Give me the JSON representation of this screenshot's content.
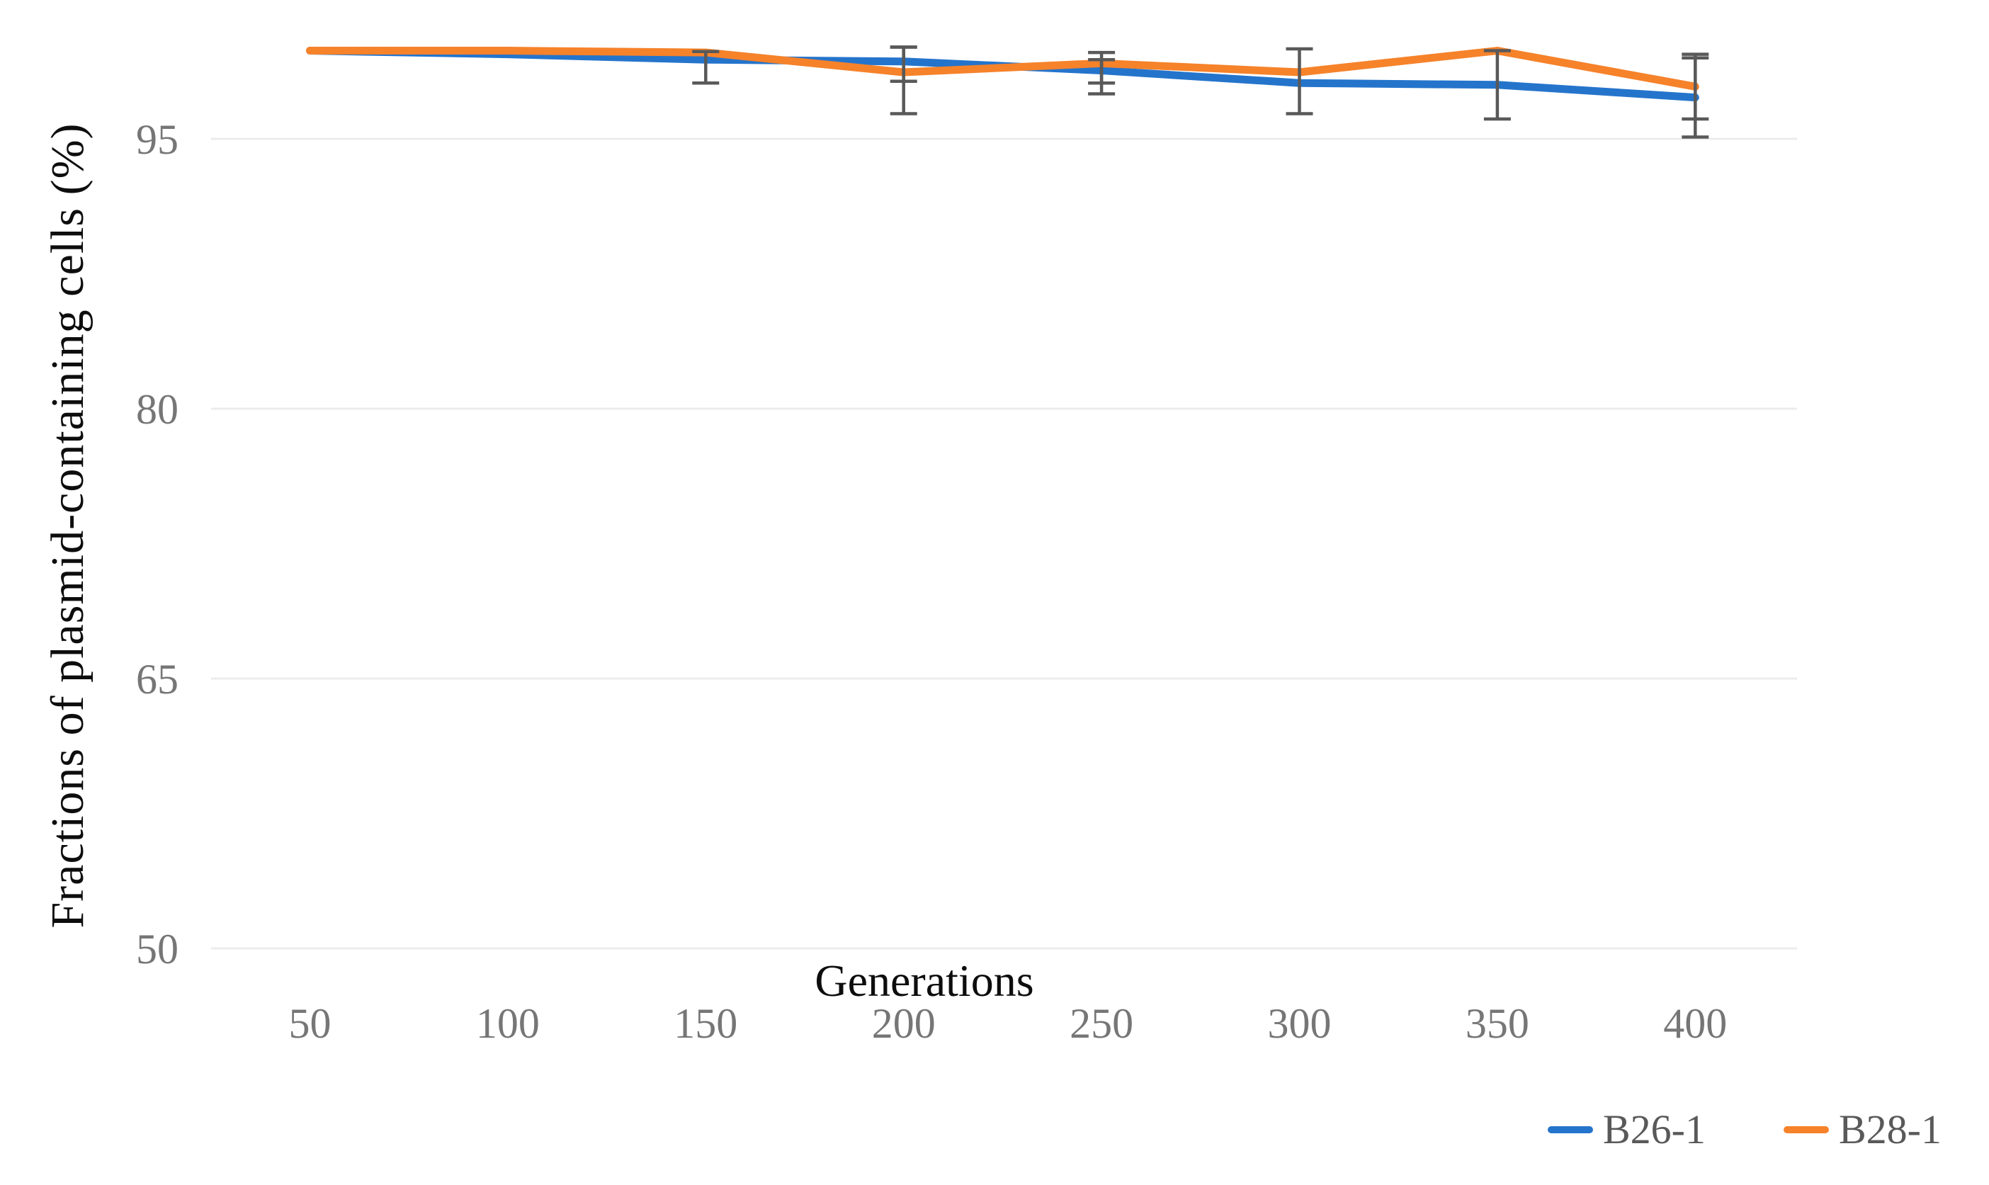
{
  "figure": {
    "background": "#ffffff"
  },
  "chart_data": {
    "type": "line",
    "title": "",
    "xlabel": "Generations",
    "ylabel": "Fractions of plasmid-containing cells (%)",
    "categories": [
      "50",
      "100",
      "150",
      "200",
      "250",
      "300",
      "350",
      "400"
    ],
    "x_values": [
      50,
      100,
      150,
      200,
      250,
      300,
      350,
      400
    ],
    "yticks": [
      50,
      65,
      80,
      95
    ],
    "ylim": [
      50,
      102.5
    ],
    "grid": "horizontal",
    "legend_position": "bottom-right",
    "series": [
      {
        "name": "B26-1",
        "color": "#2574CB",
        "values": [
          99.9,
          99.7,
          99.4,
          99.3,
          98.8,
          98.1,
          98.0,
          97.3
        ],
        "errors_minus_plus": [
          [
            0,
            0
          ],
          [
            0,
            0
          ],
          [
            1.3,
            0.45
          ],
          [
            1.1,
            0.8
          ],
          [
            1.3,
            0.6
          ],
          [
            1.7,
            1.9
          ],
          [
            1.9,
            1.9
          ],
          [
            2.2,
            2.2
          ]
        ]
      },
      {
        "name": "B28-1",
        "color": "#F6822A",
        "values": [
          99.9,
          99.9,
          99.8,
          98.7,
          99.2,
          98.7,
          99.9,
          97.9
        ],
        "errors_minus_plus": [
          [
            0,
            0
          ],
          [
            0,
            0
          ],
          [
            0,
            0
          ],
          [
            2.3,
            1.4
          ],
          [
            1.1,
            0.6
          ],
          [
            0,
            0
          ],
          [
            0,
            0
          ],
          [
            1.8,
            1.8
          ]
        ]
      }
    ],
    "colors": {
      "grid": "#ECECEC",
      "tick_label": "#767676",
      "error_bar": "#595959",
      "axis_title": "#0d0d0d"
    }
  }
}
